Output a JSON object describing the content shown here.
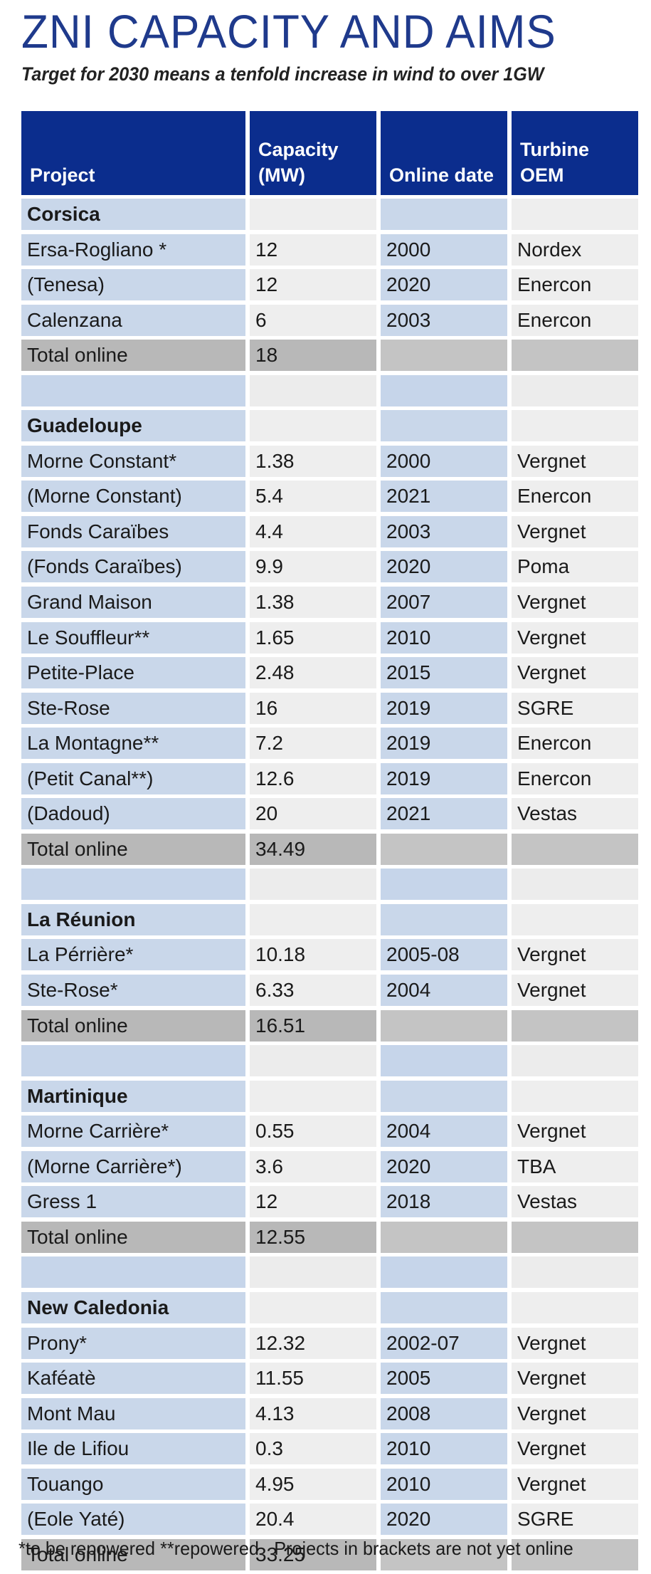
{
  "title": "ZNI CAPACITY AND AIMS",
  "subtitle": "Target for 2030 means a tenfold increase in wind to over 1GW",
  "colors": {
    "header_bg": "#0b2d8d",
    "title": "#1f3a8c",
    "blue_cell": "#c9d7ea",
    "grey_cell": "#eeeeee",
    "total_cell": "#b8b8b8"
  },
  "table": {
    "headers": [
      [
        "Project"
      ],
      [
        "Capacity",
        "(MW)"
      ],
      [
        "Online date"
      ],
      [
        "Turbine",
        "OEM"
      ]
    ],
    "rows": [
      {
        "type": "region",
        "cells": [
          "Corsica",
          "",
          "",
          ""
        ]
      },
      {
        "type": "data",
        "cells": [
          "Ersa-Rogliano *",
          "12",
          "2000",
          "Nordex"
        ]
      },
      {
        "type": "data",
        "cells": [
          "(Tenesa)",
          "12",
          "2020",
          "Enercon"
        ]
      },
      {
        "type": "data",
        "cells": [
          "Calenzana",
          "6",
          "2003",
          "Enercon"
        ]
      },
      {
        "type": "total",
        "cells": [
          "Total online",
          "18",
          "",
          ""
        ]
      },
      {
        "type": "spacer",
        "cells": [
          "",
          "",
          "",
          ""
        ]
      },
      {
        "type": "region",
        "cells": [
          "Guadeloupe",
          "",
          "",
          ""
        ]
      },
      {
        "type": "data",
        "cells": [
          "Morne Constant*",
          "1.38",
          "2000",
          "Vergnet"
        ]
      },
      {
        "type": "data",
        "cells": [
          "(Morne Constant)",
          "5.4",
          "2021",
          "Enercon"
        ]
      },
      {
        "type": "data",
        "cells": [
          "Fonds Caraïbes",
          "4.4",
          "2003",
          "Vergnet"
        ]
      },
      {
        "type": "data",
        "cells": [
          "(Fonds Caraïbes)",
          "9.9",
          "2020",
          "Poma"
        ]
      },
      {
        "type": "data",
        "cells": [
          "Grand Maison",
          "1.38",
          "2007",
          "Vergnet"
        ]
      },
      {
        "type": "data",
        "cells": [
          "Le Souffleur**",
          "1.65",
          "2010",
          "Vergnet"
        ]
      },
      {
        "type": "data",
        "cells": [
          "Petite-Place",
          "2.48",
          "2015",
          "Vergnet"
        ]
      },
      {
        "type": "data",
        "cells": [
          "Ste-Rose",
          "16",
          "2019",
          "SGRE"
        ]
      },
      {
        "type": "data",
        "cells": [
          "La Montagne**",
          "7.2",
          "2019",
          "Enercon"
        ]
      },
      {
        "type": "data",
        "cells": [
          "(Petit Canal**)",
          "12.6",
          "2019",
          "Enercon"
        ]
      },
      {
        "type": "data",
        "cells": [
          "(Dadoud)",
          "20",
          "2021",
          "Vestas"
        ]
      },
      {
        "type": "total",
        "cells": [
          "Total online",
          "34.49",
          "",
          ""
        ]
      },
      {
        "type": "spacer",
        "cells": [
          "",
          "",
          "",
          ""
        ]
      },
      {
        "type": "region",
        "cells": [
          "La Réunion",
          "",
          "",
          ""
        ]
      },
      {
        "type": "data",
        "cells": [
          "La Pérrière*",
          "10.18",
          "2005-08",
          "Vergnet"
        ]
      },
      {
        "type": "data",
        "cells": [
          "Ste-Rose*",
          "6.33",
          "2004",
          "Vergnet"
        ]
      },
      {
        "type": "total",
        "cells": [
          "Total online",
          "16.51",
          "",
          ""
        ]
      },
      {
        "type": "spacer",
        "cells": [
          "",
          "",
          "",
          ""
        ]
      },
      {
        "type": "region",
        "cells": [
          "Martinique",
          "",
          "",
          ""
        ]
      },
      {
        "type": "data",
        "cells": [
          "Morne Carrière*",
          "0.55",
          "2004",
          "Vergnet"
        ]
      },
      {
        "type": "data",
        "cells": [
          "(Morne Carrière*)",
          "3.6",
          "2020",
          "TBA"
        ]
      },
      {
        "type": "data",
        "cells": [
          "Gress 1",
          "12",
          "2018",
          "Vestas"
        ]
      },
      {
        "type": "total",
        "cells": [
          "Total online",
          "12.55",
          "",
          ""
        ]
      },
      {
        "type": "spacer",
        "cells": [
          "",
          "",
          "",
          ""
        ]
      },
      {
        "type": "region",
        "cells": [
          "New Caledonia",
          "",
          "",
          ""
        ]
      },
      {
        "type": "data",
        "cells": [
          "Prony*",
          "12.32",
          "2002-07",
          "Vergnet"
        ]
      },
      {
        "type": "data",
        "cells": [
          "Kaféatè",
          "11.55",
          "2005",
          "Vergnet"
        ]
      },
      {
        "type": "data",
        "cells": [
          "Mont Mau",
          "4.13",
          "2008",
          "Vergnet"
        ]
      },
      {
        "type": "data",
        "cells": [
          "Ile de Lifiou",
          "0.3",
          "2010",
          "Vergnet"
        ]
      },
      {
        "type": "data",
        "cells": [
          "Touango",
          "4.95",
          "2010",
          "Vergnet"
        ]
      },
      {
        "type": "data",
        "cells": [
          "(Eole Yaté)",
          "20.4",
          "2020",
          "SGRE"
        ]
      },
      {
        "type": "total",
        "cells": [
          "Total online",
          "33.25",
          "",
          ""
        ]
      }
    ]
  },
  "footnote": {
    "left": "*to be repowered **repowered",
    "right": "Projects in brackets are not yet online"
  }
}
